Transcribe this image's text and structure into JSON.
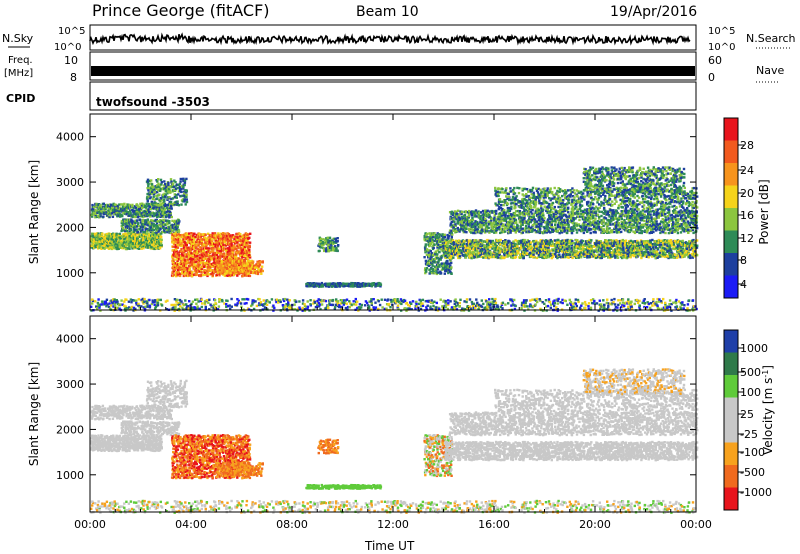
{
  "header": {
    "station": "Prince George (fitACF)",
    "beam": "Beam 10",
    "date": "19/Apr/2016"
  },
  "strips": {
    "nsky_label": "N.Sky",
    "nsky_ticks": [
      "10^5",
      "10^0"
    ],
    "nsearch_label": "N.Search",
    "nsearch_ticks": [
      "10^5",
      "10^0"
    ],
    "freq_label_1": "Freq.",
    "freq_label_2": "[MHz]",
    "freq_ticks": [
      "10",
      "8"
    ],
    "nave_label": "Nave",
    "nave_ticks": [
      "60",
      "0"
    ],
    "cpid_label": "CPID",
    "cpid_value": "twofsound -3503"
  },
  "chart_data": [
    {
      "type": "heatmap",
      "name": "power-panel",
      "ylabel": "Slant Range [km]",
      "yticks": [
        1000,
        2000,
        3000,
        4000
      ],
      "ylim": [
        180,
        4500
      ],
      "xticks": [
        "00:00",
        "04:00",
        "08:00",
        "12:00",
        "16:00",
        "20:00",
        "00:00"
      ],
      "xlim_hours": [
        0,
        24
      ],
      "colorbar": {
        "label": "Power [dB]",
        "ticks": [
          "28",
          "24",
          "20",
          "16",
          "12",
          "8",
          "4"
        ],
        "colors": [
          "#e8141c",
          "#f25a1e",
          "#f7941d",
          "#f5d31a",
          "#8cc63f",
          "#2e8b57",
          "#1d3f9e",
          "#1b1bf5"
        ]
      }
    },
    {
      "type": "heatmap",
      "name": "velocity-panel",
      "ylabel": "Slant Range [km]",
      "yticks": [
        1000,
        2000,
        3000,
        4000
      ],
      "ylim": [
        180,
        4500
      ],
      "xticks": [
        "00:00",
        "04:00",
        "08:00",
        "12:00",
        "16:00",
        "20:00",
        "00:00"
      ],
      "xlim_hours": [
        0,
        24
      ],
      "xlabel": "Time UT",
      "colorbar": {
        "label": "Velocity [m s",
        "label_sup": "-1",
        "label_close": "]",
        "ticks": [
          "1000",
          "500",
          "100",
          "25",
          "-25",
          "-100",
          "-500",
          "-1000"
        ],
        "colors": [
          "#1f3fa8",
          "#2f7a4a",
          "#5fcb3a",
          "#c8c8c8",
          "#c8c8c8",
          "#f7a21e",
          "#f06a1e",
          "#e8141c"
        ]
      }
    }
  ]
}
